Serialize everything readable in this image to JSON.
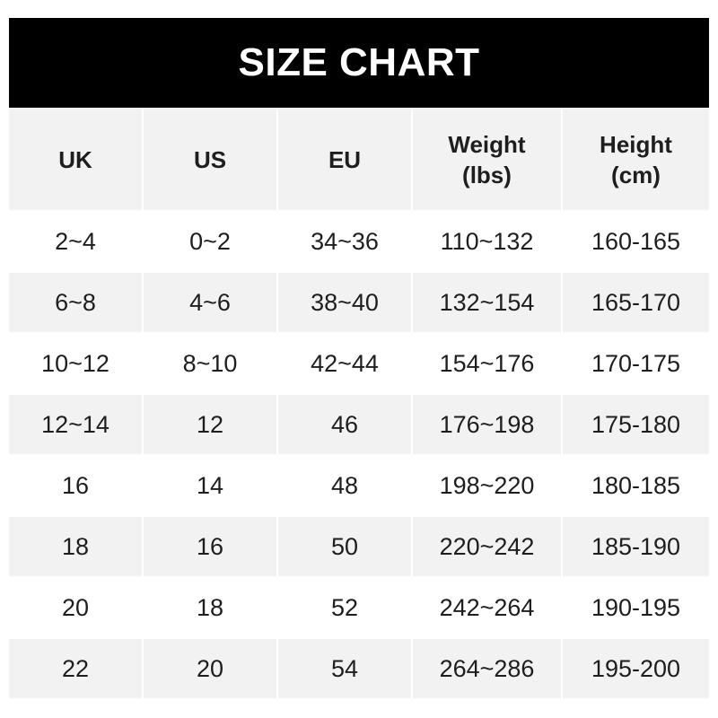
{
  "title": "SIZE CHART",
  "headers": [
    "UK",
    "US",
    "EU",
    "Weight\n(lbs)",
    "Height\n(cm)"
  ],
  "rows": [
    [
      "2~4",
      "0~2",
      "34~36",
      "110~132",
      "160-165"
    ],
    [
      "6~8",
      "4~6",
      "38~40",
      "132~154",
      "165-170"
    ],
    [
      "10~12",
      "8~10",
      "42~44",
      "154~176",
      "170-175"
    ],
    [
      "12~14",
      "12",
      "46",
      "176~198",
      "175-180"
    ],
    [
      "16",
      "14",
      "48",
      "198~220",
      "180-185"
    ],
    [
      "18",
      "16",
      "50",
      "220~242",
      "185-190"
    ],
    [
      "20",
      "18",
      "52",
      "242~264",
      "190-195"
    ],
    [
      "22",
      "20",
      "54",
      "264~286",
      "195-200"
    ]
  ]
}
